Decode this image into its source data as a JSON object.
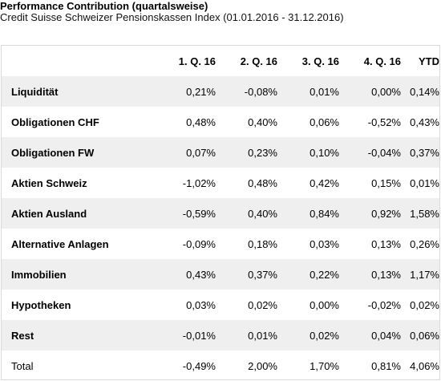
{
  "title": "Performance Contribution (quartalsweise)",
  "subtitle": "Credit Suisse Schweizer Pensionskassen Index (01.01.2016 - 31.12.2016)",
  "chart_data": {
    "type": "table",
    "columns": [
      "1. Q. 16",
      "2. Q. 16",
      "3. Q. 16",
      "4. Q. 16",
      "YTD"
    ],
    "rows": [
      {
        "label": "Liquidität",
        "values": [
          "0,21%",
          "-0,08%",
          "0,01%",
          "0,00%",
          "0,14%"
        ]
      },
      {
        "label": "Obligationen CHF",
        "values": [
          "0,48%",
          "0,40%",
          "0,06%",
          "-0,52%",
          "0,43%"
        ]
      },
      {
        "label": "Obligationen FW",
        "values": [
          "0,07%",
          "0,23%",
          "0,10%",
          "-0,04%",
          "0,37%"
        ]
      },
      {
        "label": "Aktien Schweiz",
        "values": [
          "-1,02%",
          "0,48%",
          "0,42%",
          "0,15%",
          "0,01%"
        ]
      },
      {
        "label": "Aktien Ausland",
        "values": [
          "-0,59%",
          "0,40%",
          "0,84%",
          "0,92%",
          "1,58%"
        ]
      },
      {
        "label": "Alternative Anlagen",
        "values": [
          "-0,09%",
          "0,18%",
          "0,03%",
          "0,13%",
          "0,26%"
        ]
      },
      {
        "label": "Immobilien",
        "values": [
          "0,43%",
          "0,37%",
          "0,22%",
          "0,13%",
          "1,17%"
        ]
      },
      {
        "label": "Hypotheken",
        "values": [
          "0,03%",
          "0,02%",
          "0,00%",
          "-0,02%",
          "0,02%"
        ]
      },
      {
        "label": "Rest",
        "values": [
          "-0,01%",
          "0,01%",
          "0,02%",
          "0,04%",
          "0,06%"
        ]
      },
      {
        "label": "Total",
        "values": [
          "-0,49%",
          "2,00%",
          "1,70%",
          "0,81%",
          "4,06%"
        ]
      }
    ]
  }
}
